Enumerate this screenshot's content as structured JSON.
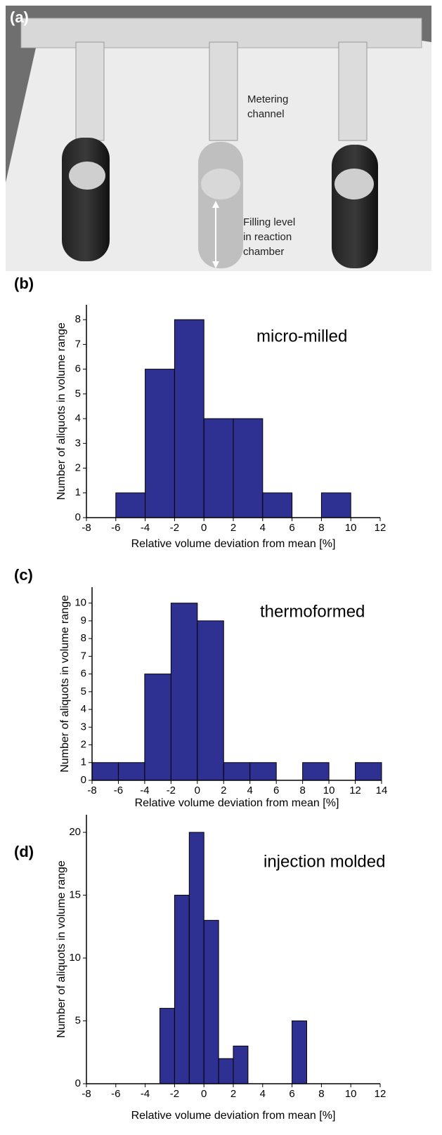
{
  "photo": {
    "label": "(a)",
    "annotations": [
      [
        "Metering",
        "channel"
      ],
      [
        "Filling level",
        "in reaction",
        "chamber"
      ]
    ]
  },
  "chart_data": [
    {
      "type": "histogram",
      "panel_label": "(b)",
      "title": "micro-milled",
      "xlabel": "Relative volume deviation from mean [%]",
      "ylabel": "Number of aliquots in volume range",
      "color": "#2e3192",
      "bins": [
        -8,
        -6,
        -4,
        -2,
        0,
        2,
        4,
        6,
        8,
        10,
        12
      ],
      "counts": [
        0,
        1,
        6,
        8,
        4,
        4,
        1,
        0,
        1,
        0
      ],
      "xlim": [
        -8,
        12
      ],
      "xticks": [
        -8,
        -6,
        -4,
        -2,
        0,
        2,
        4,
        6,
        8,
        10,
        12
      ],
      "ylim": [
        0,
        8.6
      ],
      "yticks": [
        0,
        1,
        2,
        3,
        4,
        5,
        6,
        7,
        8
      ]
    },
    {
      "type": "histogram",
      "panel_label": "(c)",
      "title": "thermoformed",
      "xlabel": "Relative volume deviation from mean [%]",
      "ylabel": "Number of aliquots in volume range",
      "color": "#2e3192",
      "bins": [
        -8,
        -6,
        -4,
        -2,
        0,
        2,
        4,
        6,
        8,
        10,
        12,
        14
      ],
      "counts": [
        1,
        1,
        6,
        10,
        9,
        1,
        1,
        0,
        1,
        0,
        1
      ],
      "xlim": [
        -8,
        14
      ],
      "xticks": [
        -8,
        -6,
        -4,
        -2,
        0,
        2,
        4,
        6,
        8,
        10,
        12,
        14
      ],
      "ylim": [
        0,
        10.9
      ],
      "yticks": [
        0,
        1,
        2,
        3,
        4,
        5,
        6,
        7,
        8,
        9,
        10
      ]
    },
    {
      "type": "histogram",
      "panel_label": "(d)",
      "title": "injection molded",
      "xlabel": "Relative volume deviation from mean [%]",
      "ylabel": "Number of aliquots in volume range",
      "color": "#2e3192",
      "bins": [
        -3,
        -2,
        -1,
        0,
        1,
        2,
        3,
        4,
        5,
        6,
        7
      ],
      "counts": [
        6,
        15,
        20,
        13,
        2,
        3,
        0,
        0,
        0,
        5
      ],
      "xlim": [
        -8,
        12
      ],
      "xticks": [
        -8,
        -6,
        -4,
        -2,
        0,
        2,
        4,
        6,
        8,
        10,
        12
      ],
      "ylim": [
        0,
        21.4
      ],
      "yticks": [
        0,
        5,
        10,
        15,
        20
      ]
    }
  ]
}
